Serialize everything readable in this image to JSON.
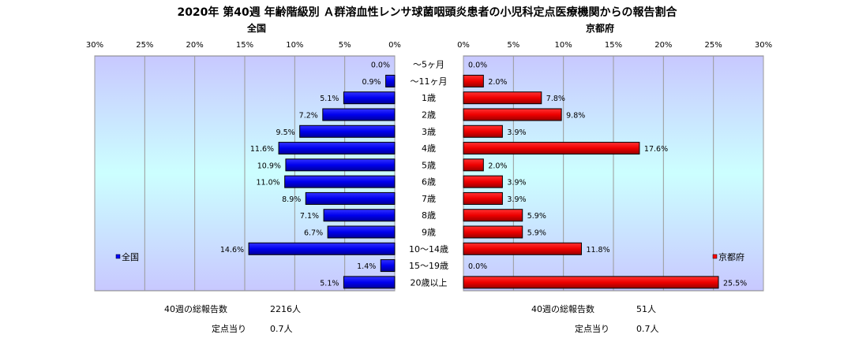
{
  "chart_data": {
    "type": "bar",
    "title": "2020年 第40週 年齢階級別 Ａ群溶血性レンサ球菌咽頭炎患者の小児科定点医療機関からの報告割合",
    "categories": [
      "～5ヶ月",
      "～11ヶ月",
      "1歳",
      "2歳",
      "3歳",
      "4歳",
      "5歳",
      "6歳",
      "7歳",
      "8歳",
      "9歳",
      "10～14歳",
      "15～19歳",
      "20歳以上"
    ],
    "panels": [
      {
        "name": "全国",
        "subtitle": "全国",
        "values": [
          0.0,
          0.9,
          5.1,
          7.2,
          9.5,
          11.6,
          10.9,
          11.0,
          8.9,
          7.1,
          6.7,
          14.6,
          1.4,
          5.1
        ],
        "data_labels": [
          "0.0%",
          "0.9%",
          "5.1%",
          "7.2%",
          "9.5%",
          "11.6%",
          "10.9%",
          "11.0%",
          "8.9%",
          "7.1%",
          "6.7%",
          "14.6%",
          "1.4%",
          "5.1%"
        ],
        "xlim": [
          0,
          30
        ],
        "ticks": [
          "30%",
          "25%",
          "20%",
          "15%",
          "10%",
          "5%",
          "0%"
        ],
        "legend": "全国",
        "legend_position": "bottom-left",
        "bar_color": "#0000ff",
        "direction": "reversed"
      },
      {
        "name": "京都府",
        "subtitle": "京都府",
        "values": [
          0.0,
          2.0,
          7.8,
          9.8,
          3.9,
          17.6,
          2.0,
          3.9,
          3.9,
          5.9,
          5.9,
          11.8,
          0.0,
          25.5
        ],
        "data_labels": [
          "0.0%",
          "2.0%",
          "7.8%",
          "9.8%",
          "3.9%",
          "17.6%",
          "2.0%",
          "3.9%",
          "3.9%",
          "5.9%",
          "5.9%",
          "11.8%",
          "0.0%",
          "25.5%"
        ],
        "xlim": [
          0,
          30
        ],
        "ticks": [
          "0%",
          "5%",
          "10%",
          "15%",
          "20%",
          "25%",
          "30%"
        ],
        "legend": "京都府",
        "legend_position": "bottom-right",
        "bar_color": "#ff0000",
        "direction": "normal"
      }
    ],
    "grid": true
  },
  "footer": {
    "left": {
      "total_label": "40週の総報告数",
      "total_value": "2216人",
      "per_label": "定点当り",
      "per_value": "0.7人"
    },
    "right": {
      "total_label": "40週の総報告数",
      "total_value": "51人",
      "per_label": "定点当り",
      "per_value": "0.7人"
    }
  }
}
